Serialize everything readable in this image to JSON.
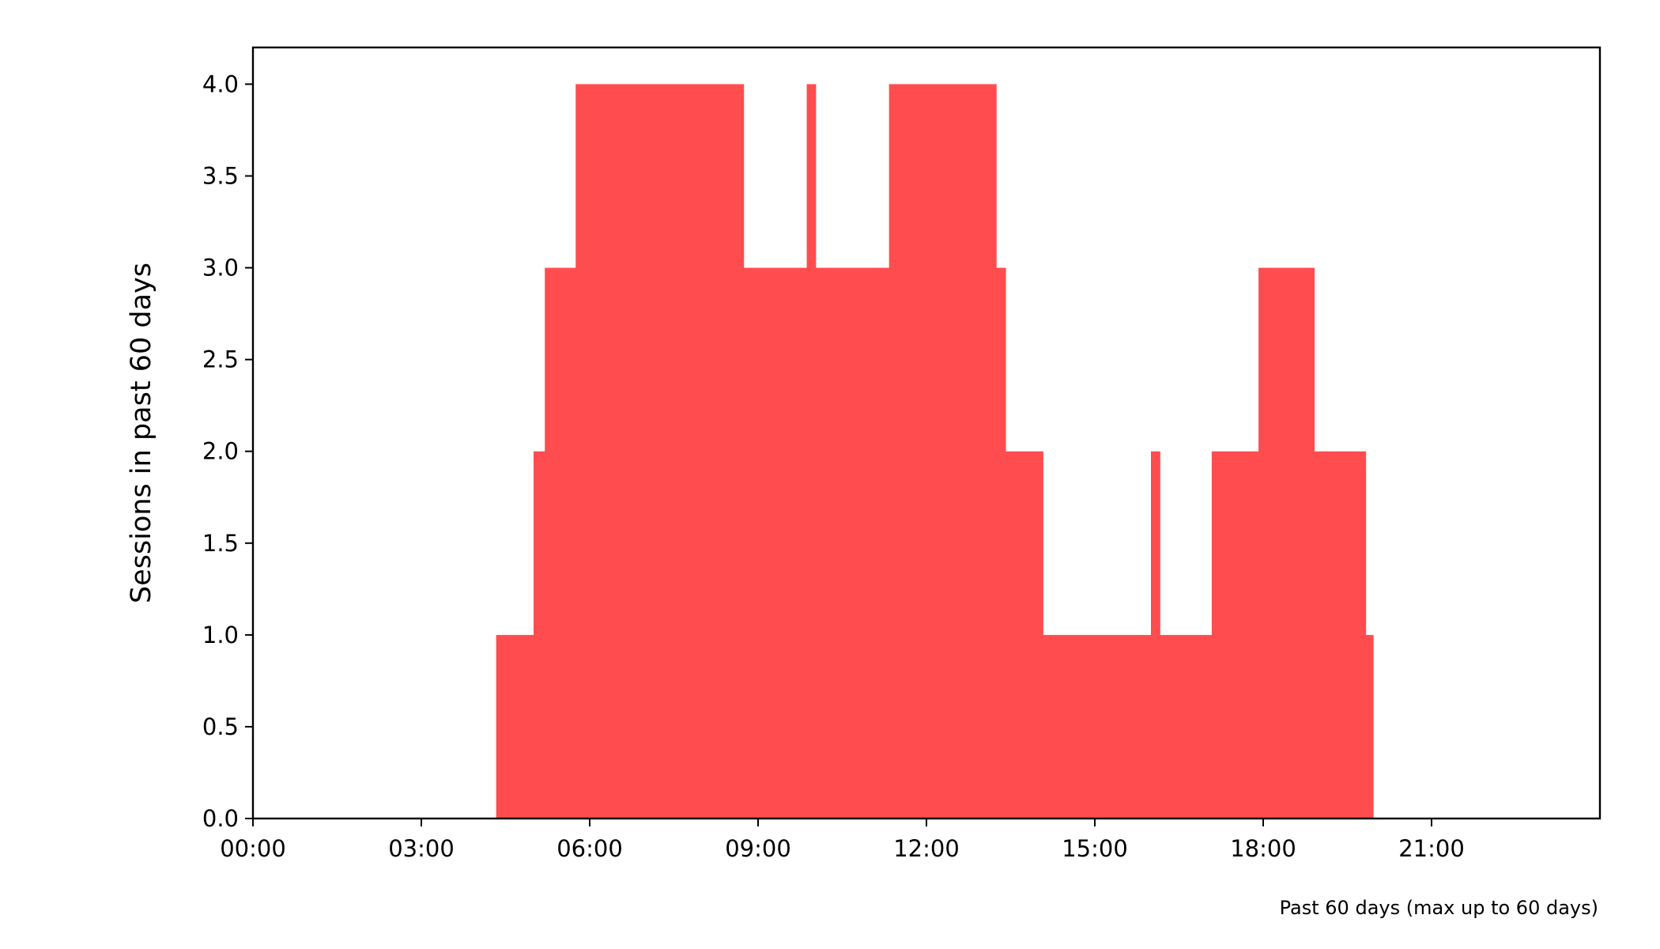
{
  "chart_data": {
    "type": "area",
    "title": "",
    "xlabel": "",
    "ylabel": "Sessions in past 60 days",
    "footnote": "Past 60 days (max up to 60 days)",
    "xlim": [
      "00:00",
      "24:00"
    ],
    "ylim": [
      0,
      4.2
    ],
    "x_tick_labels": [
      "00:00",
      "03:00",
      "06:00",
      "09:00",
      "12:00",
      "15:00",
      "18:00",
      "21:00"
    ],
    "y_tick_labels": [
      "0.0",
      "0.5",
      "1.0",
      "1.5",
      "2.0",
      "2.5",
      "3.0",
      "3.5",
      "4.0"
    ],
    "grid": false,
    "legend": "none",
    "step": "post",
    "series": [
      {
        "color": "#ff4d4f",
        "points": [
          {
            "x": "00:00",
            "y": 0
          },
          {
            "x": "04:20",
            "y": 1
          },
          {
            "x": "05:00",
            "y": 2
          },
          {
            "x": "05:12",
            "y": 3
          },
          {
            "x": "05:45",
            "y": 4
          },
          {
            "x": "08:45",
            "y": 3
          },
          {
            "x": "09:52",
            "y": 4
          },
          {
            "x": "10:02",
            "y": 3
          },
          {
            "x": "11:20",
            "y": 4
          },
          {
            "x": "13:15",
            "y": 3
          },
          {
            "x": "13:25",
            "y": 2
          },
          {
            "x": "14:05",
            "y": 1
          },
          {
            "x": "16:00",
            "y": 2
          },
          {
            "x": "16:10",
            "y": 1
          },
          {
            "x": "17:05",
            "y": 2
          },
          {
            "x": "17:55",
            "y": 3
          },
          {
            "x": "18:55",
            "y": 2
          },
          {
            "x": "19:50",
            "y": 1
          },
          {
            "x": "19:58",
            "y": 0
          },
          {
            "x": "24:00",
            "y": 0
          }
        ]
      }
    ]
  }
}
